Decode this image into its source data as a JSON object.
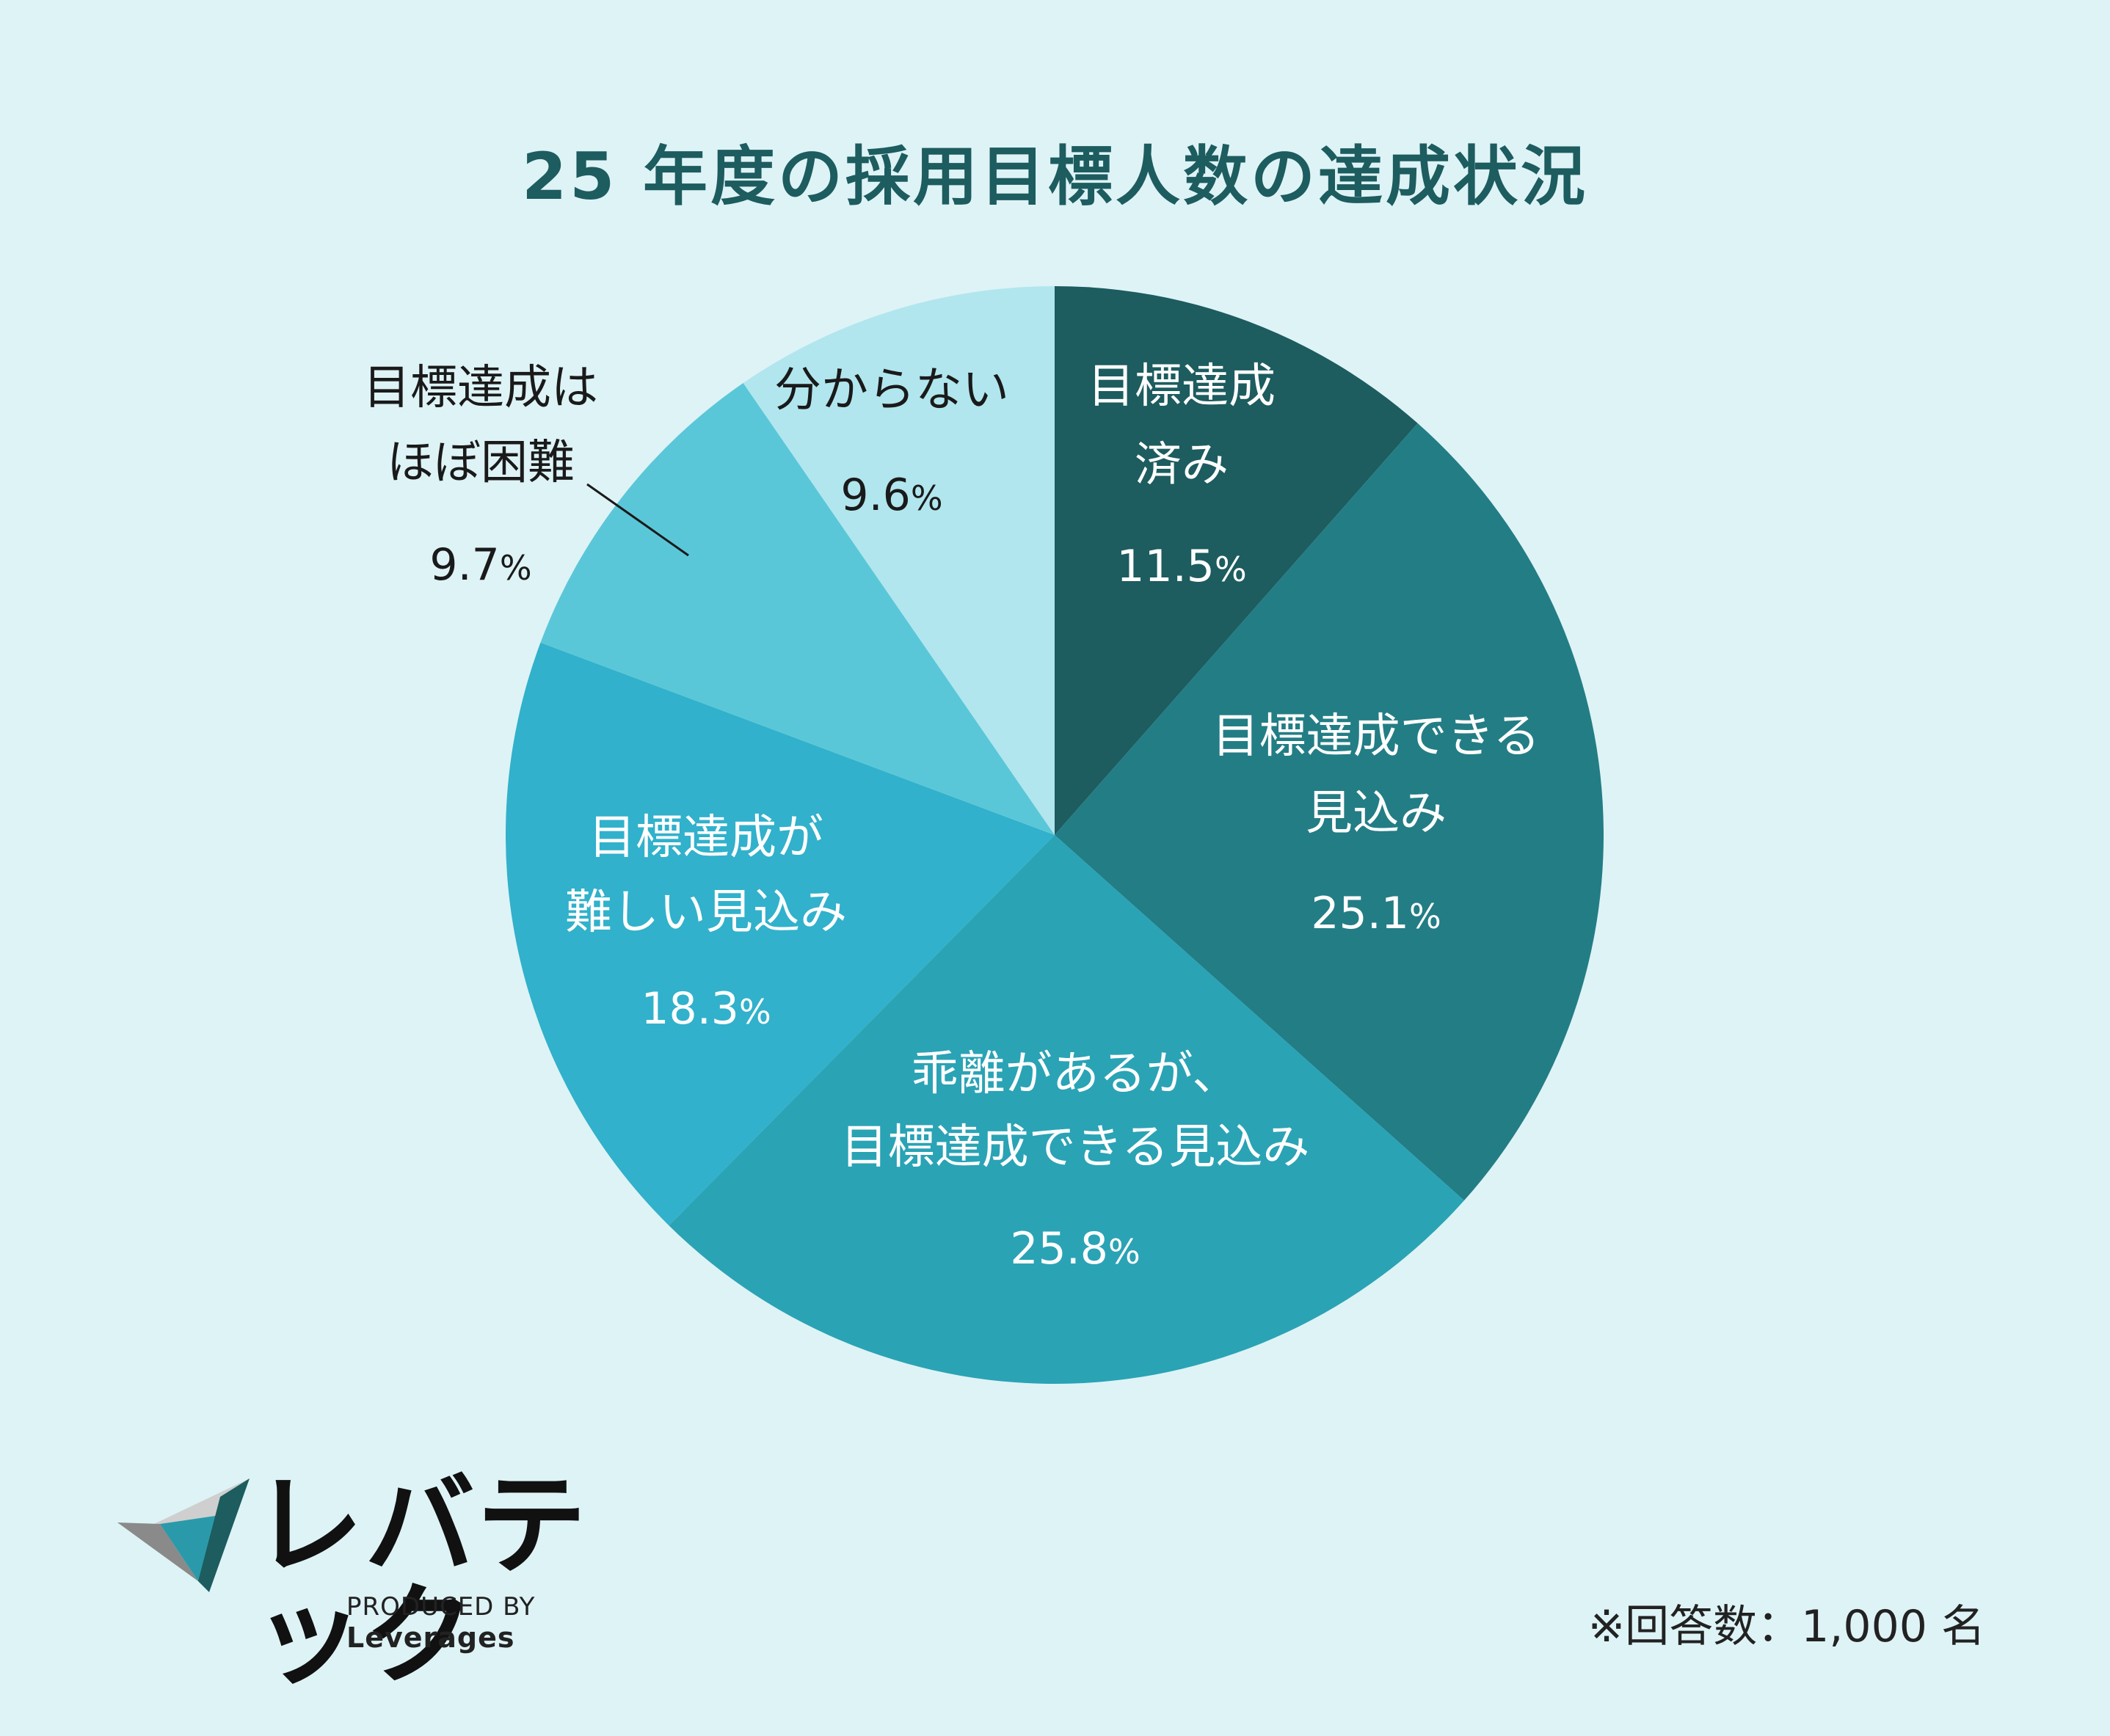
{
  "title": "25 年度の採用目標人数の達成状況",
  "chart_data": {
    "type": "pie",
    "title": "25 年度の採用目標人数の達成状況",
    "unit": "%",
    "slices": [
      {
        "label_lines": [
          "目標達成",
          "済み"
        ],
        "value": 11.5,
        "value_text": "11.5",
        "color": "#1d5c5f",
        "text_color": "#ffffff"
      },
      {
        "label_lines": [
          "目標達成できる",
          "見込み"
        ],
        "value": 25.1,
        "value_text": "25.1",
        "color": "#237d85",
        "text_color": "#ffffff"
      },
      {
        "label_lines": [
          "乖離があるが、",
          "目標達成できる見込み"
        ],
        "value": 25.8,
        "value_text": "25.8",
        "color": "#2aa3b5",
        "text_color": "#ffffff"
      },
      {
        "label_lines": [
          "目標達成が",
          "難しい見込み"
        ],
        "value": 18.3,
        "value_text": "18.3",
        "color": "#31b1cb",
        "text_color": "#ffffff"
      },
      {
        "label_lines": [
          "目標達成は",
          "ほぼ困難"
        ],
        "value": 9.7,
        "value_text": "9.7",
        "color": "#5ac7d8",
        "text_color": "#1a1a1a"
      },
      {
        "label_lines": [
          "分からない"
        ],
        "value": 9.6,
        "value_text": "9.6",
        "color": "#b1e6ee",
        "text_color": "#1a1a1a"
      }
    ],
    "legend": "none"
  },
  "logo": {
    "wordmark": "レバテック",
    "tagline_prefix": "PRODUCED BY",
    "tagline_brand": "Leverages",
    "colors": {
      "dark": "#1d5c5f",
      "mid": "#2a9aaa",
      "grey": "#8a8a8a",
      "light": "#cfcfcf"
    }
  },
  "footnote": "※回答数：1,000 名"
}
